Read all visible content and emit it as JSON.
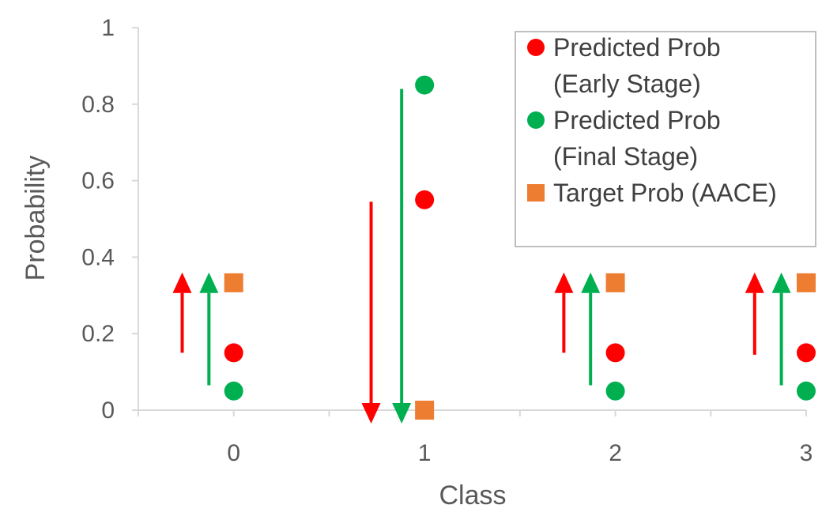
{
  "chart_data": {
    "type": "scatter",
    "title": "",
    "xlabel": "Class",
    "ylabel": "Probability",
    "xlim": [
      -0.5,
      3
    ],
    "ylim": [
      0,
      1
    ],
    "categories": [
      "0",
      "1",
      "2",
      "3"
    ],
    "y_ticks": [
      "0",
      "0.2",
      "0.4",
      "0.6",
      "0.8",
      "1"
    ],
    "grid": false,
    "legend_position": "top-right",
    "series": [
      {
        "name": "Predicted Prob (Early Stage)",
        "marker": "circle",
        "color": "#ff0000",
        "x": [
          0,
          1,
          2,
          3
        ],
        "values": [
          0.15,
          0.55,
          0.15,
          0.15
        ]
      },
      {
        "name": "Predicted Prob (Final Stage)",
        "marker": "circle",
        "color": "#00b050",
        "x": [
          0,
          1,
          2,
          3
        ],
        "values": [
          0.05,
          0.85,
          0.05,
          0.05
        ]
      },
      {
        "name": "Target Prob (AACE)",
        "marker": "square",
        "color": "#ed7d31",
        "x": [
          0,
          1,
          2,
          3
        ],
        "values": [
          0.333,
          0,
          0.333,
          0.333
        ]
      }
    ],
    "legend_lines": [
      {
        "text": "Predicted Prob",
        "marker": "circle",
        "color": "#ff0000"
      },
      {
        "text": "(Early Stage)",
        "marker": "",
        "color": ""
      },
      {
        "text": "Predicted Prob",
        "marker": "circle",
        "color": "#00b050"
      },
      {
        "text": "(Final Stage)",
        "marker": "",
        "color": ""
      },
      {
        "text": "Target Prob (AACE)",
        "marker": "square",
        "color": "#ed7d31"
      }
    ],
    "arrows": [
      {
        "color": "#ff0000",
        "x": -0.27,
        "from": 0.15,
        "to": 0.36
      },
      {
        "color": "#00b050",
        "x": -0.13,
        "from": 0.065,
        "to": 0.36
      },
      {
        "color": "#ff0000",
        "x": 0.72,
        "from": 0.545,
        "to": -0.035
      },
      {
        "color": "#00b050",
        "x": 0.88,
        "from": 0.84,
        "to": -0.035
      },
      {
        "color": "#ff0000",
        "x": 1.73,
        "from": 0.15,
        "to": 0.36
      },
      {
        "color": "#00b050",
        "x": 1.87,
        "from": 0.065,
        "to": 0.36
      },
      {
        "color": "#ff0000",
        "x": 2.73,
        "from": 0.145,
        "to": 0.36
      },
      {
        "color": "#00b050",
        "x": 2.87,
        "from": 0.065,
        "to": 0.36
      }
    ]
  }
}
